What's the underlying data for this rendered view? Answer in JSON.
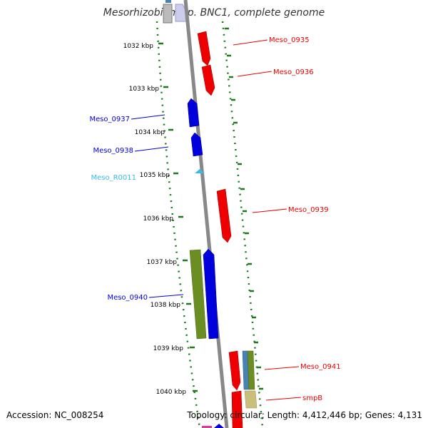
{
  "title": "Mesorhizobium sp. BNC1, complete genome",
  "accession": "Accession: NC_008254",
  "topology": "Topology: circular; Length: 4,412,446 bp; Genes: 4,131",
  "ticks": [
    "1032 kbp",
    "1033 kbp",
    "1034 kbp",
    "1035 kbp",
    "1036 kbp",
    "1037 kbp",
    "1038 kbp",
    "1039 kbp",
    "1040 kbp"
  ],
  "genes": {
    "meso_0935": "Meso_0935",
    "meso_0936": "Meso_0936",
    "meso_0937": "Meso_0937",
    "meso_0938": "Meso_0938",
    "meso_r0011": "Meso_R0011",
    "meso_0939": "Meso_0939",
    "meso_0940": "Meso_0940",
    "meso_0941": "Meso_0941",
    "smpB": "smpB"
  },
  "colors": {
    "forward_cds": "#ee0000",
    "reverse_cds": "#0000dd",
    "rna": "#33bbee",
    "cog_olive": "#6b8e23",
    "cog_steel": "#4682b4",
    "cog_khaki": "#c8c07a",
    "backbone": "#888888",
    "dots": "#1a7a1a",
    "ticks": "#1a7a1a"
  }
}
